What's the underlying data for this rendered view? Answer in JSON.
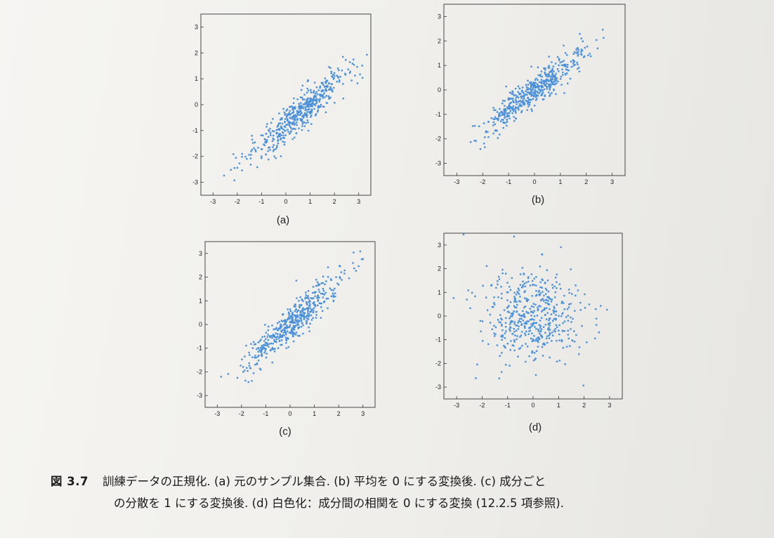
{
  "figure": {
    "label": "図 3.7",
    "caption_line1": "訓練データの正規化. (a) 元のサンプル集合. (b) 平均を 0 にする変換後. (c) 成分ごと",
    "caption_line2": "の分散を 1 にする変換後. (d) 白色化：成分間の相関を 0 にする変換 (12.2.5 項参照)."
  },
  "panels": [
    {
      "id": "a",
      "label": "(a)",
      "x_ticks": [
        "-3",
        "-2",
        "-1",
        "0",
        "1",
        "2",
        "3"
      ],
      "y_ticks": [
        "3",
        "2",
        "1",
        "0",
        "-1",
        "-2",
        "-3"
      ]
    },
    {
      "id": "b",
      "label": "(b)",
      "x_ticks": [
        "-3",
        "-2",
        "-1",
        "0",
        "1",
        "2",
        "3"
      ],
      "y_ticks": [
        "3",
        "2",
        "1",
        "0",
        "-1",
        "-2",
        "-3"
      ]
    },
    {
      "id": "c",
      "label": "(c)",
      "x_ticks": [
        "-3",
        "-2",
        "-1",
        "0",
        "1",
        "2",
        "3"
      ],
      "y_ticks": [
        "3",
        "2",
        "1",
        "0",
        "-1",
        "-2",
        "-3"
      ]
    },
    {
      "id": "d",
      "label": "(d)",
      "x_ticks": [
        "-3",
        "-2",
        "-1",
        "0",
        "1",
        "2",
        "3"
      ],
      "y_ticks": [
        "3",
        "2",
        "1",
        "0",
        "-1",
        "-2",
        "-3"
      ]
    }
  ],
  "chart_data": [
    {
      "type": "scatter",
      "panel": "a",
      "xlim": [
        -3.5,
        3.5
      ],
      "ylim": [
        -3.5,
        3.5
      ],
      "correlation": 0.92,
      "x_mean": 0.6,
      "y_mean": -0.3,
      "x_std": 1.0,
      "y_std": 0.85,
      "n_points": 500,
      "color": "#4a90d9"
    },
    {
      "type": "scatter",
      "panel": "b",
      "xlim": [
        -3.5,
        3.5
      ],
      "ylim": [
        -3.5,
        3.5
      ],
      "correlation": 0.92,
      "x_mean": 0.0,
      "y_mean": 0.0,
      "x_std": 1.0,
      "y_std": 0.85,
      "n_points": 500,
      "color": "#4a90d9"
    },
    {
      "type": "scatter",
      "panel": "c",
      "xlim": [
        -3.5,
        3.5
      ],
      "ylim": [
        -3.5,
        3.5
      ],
      "correlation": 0.92,
      "x_mean": 0.0,
      "y_mean": 0.0,
      "x_std": 1.0,
      "y_std": 1.0,
      "n_points": 500,
      "color": "#4a90d9"
    },
    {
      "type": "scatter",
      "panel": "d",
      "xlim": [
        -3.5,
        3.5
      ],
      "ylim": [
        -3.5,
        3.5
      ],
      "correlation": 0.0,
      "x_mean": 0.0,
      "y_mean": 0.0,
      "x_std": 1.0,
      "y_std": 1.0,
      "n_points": 500,
      "color": "#4a90d9"
    }
  ]
}
